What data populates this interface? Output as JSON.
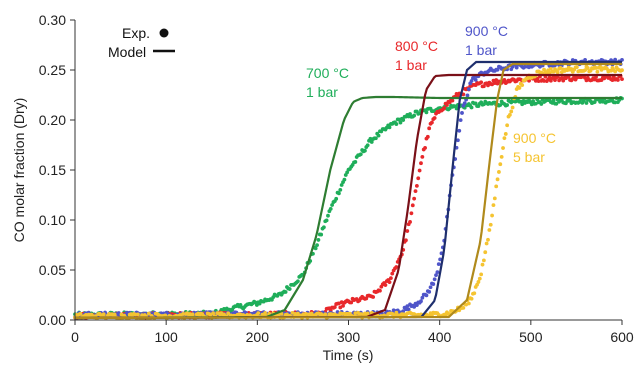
{
  "chart_data": {
    "type": "scatter",
    "xlabel": "Time (s)",
    "ylabel": "CO molar fraction (Dry)",
    "xlim": [
      0,
      600
    ],
    "ylim": [
      0,
      0.3
    ],
    "xticks": [
      0,
      100,
      200,
      300,
      400,
      500,
      600
    ],
    "yticks": [
      0.0,
      0.05,
      0.1,
      0.15,
      0.2,
      0.25,
      0.3
    ],
    "xtick_labels": [
      "0",
      "100",
      "200",
      "300",
      "400",
      "500",
      "600"
    ],
    "ytick_labels": [
      "0.00",
      "0.05",
      "0.10",
      "0.15",
      "0.20",
      "0.25",
      "0.30"
    ],
    "grid": false,
    "legend": {
      "placement": "top-left",
      "entries": [
        {
          "label": "Exp.",
          "marker": "dot"
        },
        {
          "label": "Model",
          "marker": "line"
        }
      ]
    },
    "series": [
      {
        "annotation": [
          "700 °C",
          "1 bar"
        ],
        "exp_color": "#1fae5a",
        "model_color": "#2e7d32",
        "exp": {
          "x": [
            0,
            150,
            175,
            200,
            225,
            250,
            265,
            280,
            300,
            325,
            350,
            375,
            400,
            450,
            500,
            550,
            600
          ],
          "y": [
            0.005,
            0.006,
            0.012,
            0.017,
            0.025,
            0.045,
            0.075,
            0.11,
            0.15,
            0.18,
            0.197,
            0.207,
            0.212,
            0.216,
            0.218,
            0.219,
            0.22
          ]
        },
        "model": {
          "x": [
            0,
            210,
            230,
            250,
            265,
            280,
            295,
            305,
            315,
            330,
            350,
            400,
            500,
            600
          ],
          "y": [
            0.002,
            0.003,
            0.01,
            0.04,
            0.085,
            0.15,
            0.2,
            0.218,
            0.222,
            0.223,
            0.223,
            0.222,
            0.222,
            0.222
          ]
        }
      },
      {
        "annotation": [
          "800 °C",
          "1 bar"
        ],
        "exp_color": "#e8282b",
        "model_color": "#7a1018",
        "exp": {
          "x": [
            0,
            270,
            285,
            300,
            325,
            345,
            360,
            370,
            380,
            390,
            400,
            420,
            440,
            460,
            480,
            500,
            550,
            600
          ],
          "y": [
            0.004,
            0.006,
            0.013,
            0.018,
            0.023,
            0.04,
            0.07,
            0.11,
            0.16,
            0.195,
            0.21,
            0.225,
            0.235,
            0.238,
            0.24,
            0.241,
            0.242,
            0.242
          ]
        },
        "model": {
          "x": [
            0,
            320,
            340,
            355,
            365,
            375,
            385,
            395,
            410,
            450,
            500,
            600
          ],
          "y": [
            0.002,
            0.003,
            0.01,
            0.05,
            0.11,
            0.18,
            0.23,
            0.244,
            0.245,
            0.245,
            0.245,
            0.245
          ]
        }
      },
      {
        "annotation": [
          "900 °C",
          "1 bar"
        ],
        "exp_color": "#4f55c9",
        "model_color": "#1f2f6e",
        "exp": {
          "x": [
            0,
            340,
            360,
            375,
            385,
            395,
            405,
            415,
            425,
            435,
            450,
            470,
            500,
            550,
            600
          ],
          "y": [
            0.005,
            0.006,
            0.01,
            0.017,
            0.025,
            0.04,
            0.08,
            0.15,
            0.21,
            0.24,
            0.248,
            0.252,
            0.255,
            0.258,
            0.258
          ]
        },
        "model": {
          "x": [
            0,
            380,
            395,
            405,
            415,
            422,
            430,
            440,
            460,
            500,
            600
          ],
          "y": [
            0.002,
            0.003,
            0.02,
            0.07,
            0.16,
            0.22,
            0.25,
            0.258,
            0.258,
            0.258,
            0.258
          ]
        }
      },
      {
        "annotation": [
          "900 °C",
          "5 bar"
        ],
        "exp_color": "#f5c431",
        "model_color": "#b08a1c",
        "exp": {
          "x": [
            0,
            390,
            410,
            425,
            435,
            445,
            455,
            465,
            475,
            485,
            495,
            510,
            530,
            560,
            600
          ],
          "y": [
            0.004,
            0.005,
            0.007,
            0.012,
            0.022,
            0.045,
            0.09,
            0.15,
            0.2,
            0.23,
            0.242,
            0.248,
            0.25,
            0.251,
            0.25
          ]
        },
        "model": {
          "x": [
            0,
            410,
            430,
            445,
            455,
            463,
            470,
            480,
            500,
            550,
            600
          ],
          "y": [
            0.002,
            0.003,
            0.02,
            0.08,
            0.16,
            0.22,
            0.25,
            0.256,
            0.256,
            0.256,
            0.256
          ]
        }
      }
    ]
  }
}
